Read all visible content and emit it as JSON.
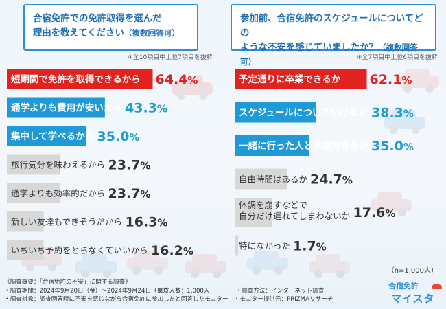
{
  "left": {
    "title_line1": "合宿免許での免許取得を選んだ",
    "title_line2": "理由を教えてください",
    "title_suffix": "（複数回答可）",
    "note": "※全10項目中上位7項目を抜粋"
  },
  "right": {
    "title_line1": "参加前、合宿免許のスケジュールについてどの",
    "title_line2": "ような不安を感じていましたか？",
    "title_suffix": "（複数回答可）",
    "note": "※全7項目中上位6項目を抜粋",
    "n_label": "（n=1,000人）"
  },
  "chart_data": [
    {
      "type": "bar",
      "orientation": "horizontal",
      "title": "合宿免許での免許取得を選んだ理由を教えてください（複数回答可）",
      "unit": "%",
      "xlim": [
        0,
        100
      ],
      "categories": [
        "短期間で免許を取得できるから",
        "通学よりも費用が安いから",
        "集中して学べるから",
        "旅行気分を味わえるから",
        "通学よりも効率的だから",
        "新しい友達もできそうだから",
        "いちいち予約をとらなくていいから"
      ],
      "values": [
        64.4,
        43.3,
        35.0,
        23.7,
        23.7,
        16.3,
        16.2
      ],
      "value_labels": [
        "64.4%",
        "43.3%",
        "35.0%",
        "23.7%",
        "23.7%",
        "16.3%",
        "16.2%"
      ],
      "colors": [
        "#e2221e",
        "#1f9ad6",
        "#1f9ad6",
        "#d8d8d8",
        "#d8d8d8",
        "#d8d8d8",
        "#d8d8d8"
      ]
    },
    {
      "type": "bar",
      "orientation": "horizontal",
      "title": "参加前、合宿免許のスケジュールについてどのような不安を感じていましたか？（複数回答可）",
      "unit": "%",
      "xlim": [
        0,
        100
      ],
      "categories": [
        "予定通りに卒業できるか",
        "スケジュールについていけるか",
        "一緒に行った人と卒業できるか",
        "自由時間はあるか",
        "体調を崩すなどで|自分だけ遅れてしまわないか",
        "特になかった"
      ],
      "values": [
        62.1,
        38.3,
        35.0,
        24.7,
        17.6,
        1.7
      ],
      "value_labels": [
        "62.1%",
        "38.3%",
        "35.0%",
        "24.7%",
        "17.6%",
        "1.7%"
      ],
      "colors": [
        "#e2221e",
        "#1f9ad6",
        "#1f9ad6",
        "#d8d8d8",
        "#d8d8d8",
        "#d8d8d8"
      ]
    }
  ],
  "footer": {
    "title": "《調査概要：「合宿免許の不安」に関する調査》",
    "period": "・調査期間：2024年9月20日（金）〜2024年9月24日（火）",
    "count": "・調査人数：1,000人",
    "method": "・調査方法：インターネット調査",
    "target": "・調査対象：調査回答時に不安を感じながら合宿免許に参加したと回答したモニター",
    "provider": "・モニター提供元：PRIZMAリサーチ"
  },
  "logo": {
    "line1": "合宿免許",
    "line2": "マイスター",
    "accent": "#2f8fd8"
  }
}
